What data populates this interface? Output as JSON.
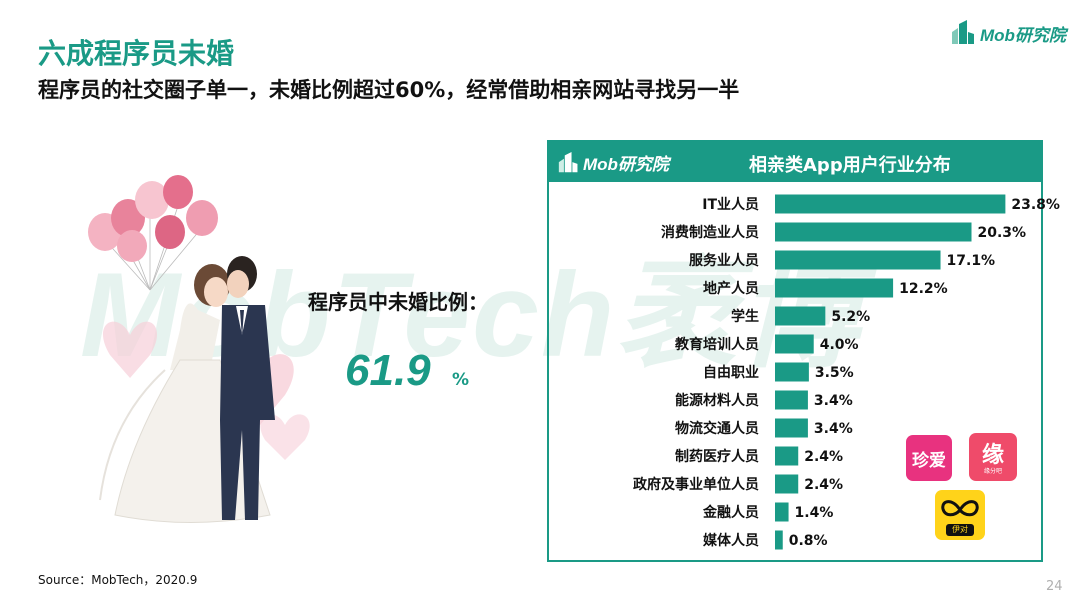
{
  "watermark": "MobTech袤博",
  "header": {
    "title": "六成程序员未婚",
    "subtitle": "程序员的社交圈子单一，未婚比例超过60%，经常借助相亲网站寻找另一半"
  },
  "logo": {
    "text": "Mob研究院"
  },
  "stat": {
    "label": "程序员中未婚比例：",
    "value": "61.9",
    "unit": "%"
  },
  "panel": {
    "logo_text": "Mob研究院",
    "title": "相亲类App用户行业分布"
  },
  "chart_data": {
    "type": "bar",
    "orientation": "horizontal",
    "categories": [
      "IT业人员",
      "消费制造业人员",
      "服务业人员",
      "地产人员",
      "学生",
      "教育培训人员",
      "自由职业",
      "能源材料人员",
      "物流交通人员",
      "制药医疗人员",
      "政府及事业单位人员",
      "金融人员",
      "媒体人员"
    ],
    "values": [
      23.8,
      20.3,
      17.1,
      12.2,
      5.2,
      4.0,
      3.5,
      3.4,
      3.4,
      2.4,
      2.4,
      1.4,
      0.8
    ],
    "value_labels": [
      "23.8%",
      "20.3%",
      "17.1%",
      "12.2%",
      "5.2%",
      "4.0%",
      "3.5%",
      "3.4%",
      "3.4%",
      "2.4%",
      "2.4%",
      "1.4%",
      "0.8%"
    ],
    "title": "相亲类App用户行业分布",
    "xlim": [
      0,
      25
    ],
    "bar_color": "#1a9a86",
    "grid": false
  },
  "apps": {
    "zhenai": "珍爱",
    "yuan": "缘",
    "yuan_sub": "缘分吧",
    "yidui": "伊对"
  },
  "footer": {
    "source": "Source：MobTech，2020.9",
    "page": "24"
  },
  "colors": {
    "accent": "#1a9a86"
  }
}
